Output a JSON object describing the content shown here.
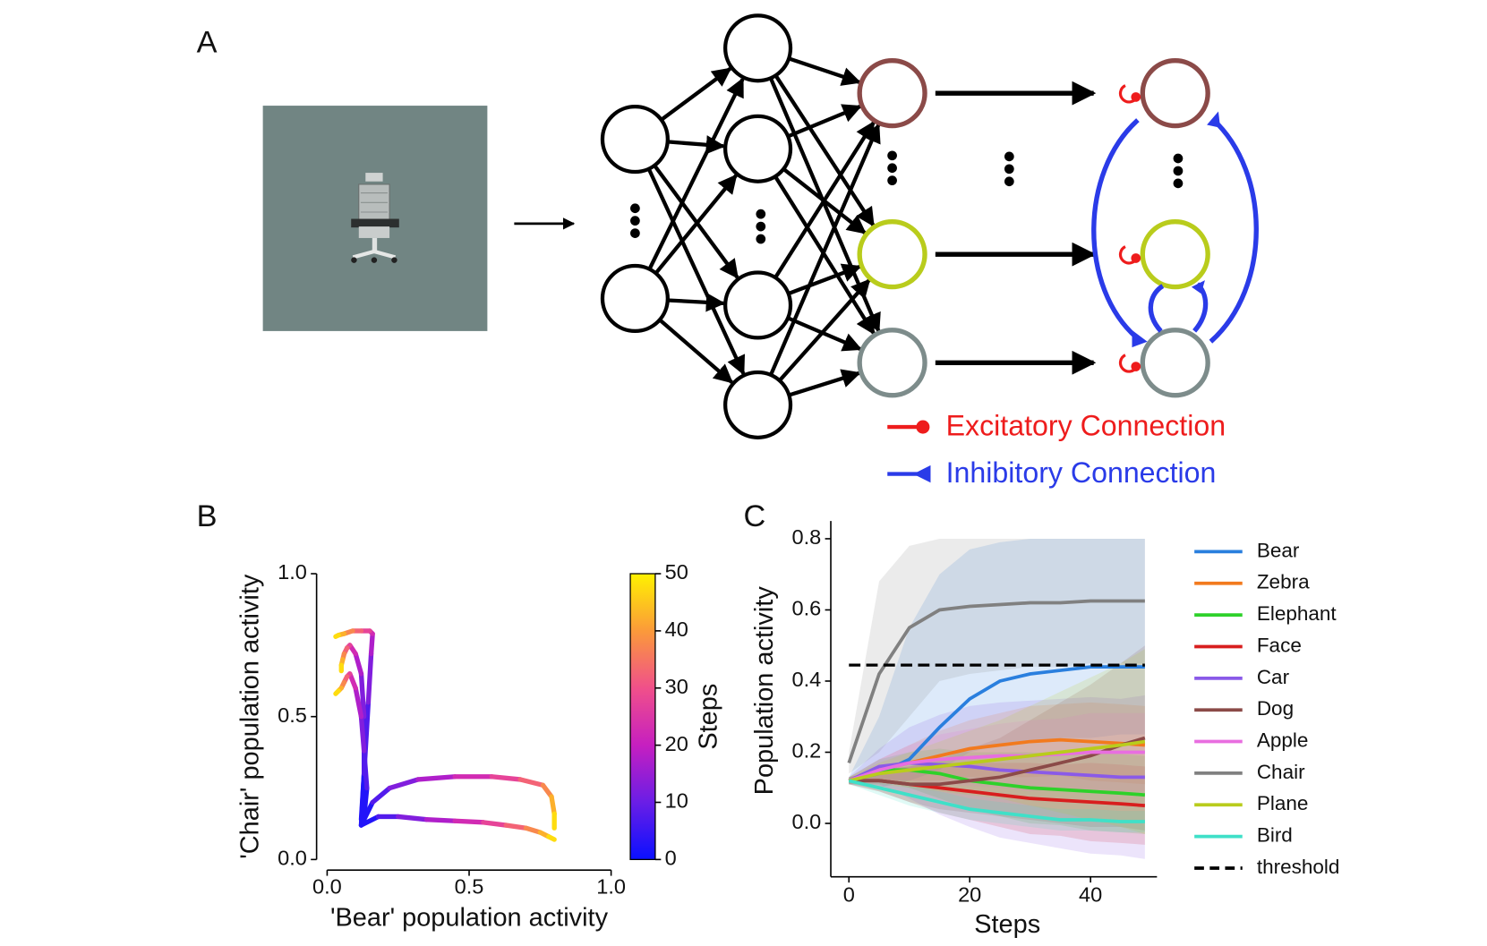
{
  "panel_labels": [
    "A",
    "B",
    "C"
  ],
  "diagram": {
    "legend": [
      "Excitatory Connection",
      "Inhibitory Connection"
    ],
    "excitatory_color": "#ee1c1c",
    "inhibitory_color": "#2a3be8",
    "output_colors": [
      "#8b4a48",
      "#b9cc1c",
      "#7d8c8b"
    ]
  },
  "chart_data": [
    {
      "type": "trajectory",
      "xlabel": "'Bear' population activity",
      "ylabel": "'Chair' population activity",
      "xlim": [
        0,
        1
      ],
      "ylim": [
        0,
        1
      ],
      "xticks": [
        {
          "value": 0,
          "label": "0.0"
        },
        0.5,
        {
          "value": 1,
          "label": "1.0"
        }
      ],
      "yticks": [
        {
          "value": 0,
          "label": "0.0"
        },
        0.5,
        {
          "value": 1,
          "label": "1.0"
        }
      ],
      "steps": [
        0,
        5,
        10,
        15,
        20,
        25,
        30,
        35,
        40,
        45,
        50
      ],
      "colorbar": {
        "label": "Steps",
        "lim": [
          0,
          50
        ],
        "ticks": [
          0,
          10,
          20,
          30,
          40,
          50
        ],
        "colors": [
          "#0a10ff",
          "#6a1ee6",
          "#c61fc0",
          "#f0508a",
          "#fb9a3a",
          "#fff200"
        ]
      },
      "series": [
        {
          "x": [
            0.12,
            0.13,
            0.145,
            0.155,
            0.16,
            0.15,
            0.12,
            0.09,
            0.06,
            0.04,
            0.03
          ],
          "y": [
            0.12,
            0.3,
            0.55,
            0.72,
            0.79,
            0.8,
            0.8,
            0.8,
            0.79,
            0.785,
            0.78
          ]
        },
        {
          "x": [
            0.12,
            0.13,
            0.13,
            0.12,
            0.1,
            0.08,
            0.07,
            0.06,
            0.055,
            0.05,
            0.05
          ],
          "y": [
            0.14,
            0.3,
            0.5,
            0.65,
            0.72,
            0.75,
            0.74,
            0.72,
            0.7,
            0.68,
            0.66
          ]
        },
        {
          "x": [
            0.13,
            0.14,
            0.13,
            0.12,
            0.1,
            0.08,
            0.07,
            0.06,
            0.05,
            0.04,
            0.03
          ],
          "y": [
            0.15,
            0.25,
            0.38,
            0.5,
            0.6,
            0.65,
            0.64,
            0.62,
            0.6,
            0.59,
            0.58
          ]
        },
        {
          "x": [
            0.12,
            0.16,
            0.22,
            0.32,
            0.45,
            0.58,
            0.68,
            0.76,
            0.79,
            0.8,
            0.8
          ],
          "y": [
            0.12,
            0.2,
            0.25,
            0.28,
            0.29,
            0.29,
            0.28,
            0.26,
            0.22,
            0.16,
            0.11
          ]
        },
        {
          "x": [
            0.12,
            0.18,
            0.25,
            0.35,
            0.45,
            0.55,
            0.63,
            0.7,
            0.75,
            0.78,
            0.8
          ],
          "y": [
            0.12,
            0.15,
            0.15,
            0.14,
            0.135,
            0.13,
            0.12,
            0.11,
            0.095,
            0.08,
            0.07
          ]
        }
      ]
    },
    {
      "type": "line",
      "xlabel": "Steps",
      "ylabel": "Population activity",
      "xlim": [
        -3,
        51
      ],
      "ylim": [
        -0.15,
        0.85
      ],
      "xticks": [
        0,
        20,
        40
      ],
      "yticks": [
        {
          "value": 0,
          "label": "0.0"
        },
        0.2,
        0.4,
        0.6,
        0.8
      ],
      "x": [
        0,
        5,
        10,
        15,
        20,
        25,
        30,
        35,
        40,
        45,
        49
      ],
      "series": [
        {
          "name": "Bear",
          "color": "#2a7fde",
          "values": [
            0.12,
            0.14,
            0.18,
            0.27,
            0.35,
            0.4,
            0.42,
            0.43,
            0.44,
            0.44,
            0.44
          ],
          "lower": [
            0.11,
            0.1,
            0.12,
            0.15,
            0.2,
            0.22,
            0.23,
            0.24,
            0.24,
            0.25,
            0.25
          ],
          "upper": [
            0.13,
            0.3,
            0.55,
            0.7,
            0.77,
            0.79,
            0.8,
            0.8,
            0.8,
            0.8,
            0.8
          ]
        },
        {
          "name": "Zebra",
          "color": "#f27a1e",
          "values": [
            0.12,
            0.15,
            0.17,
            0.19,
            0.21,
            0.22,
            0.23,
            0.235,
            0.23,
            0.225,
            0.22
          ],
          "lower": [
            0.11,
            0.12,
            0.12,
            0.12,
            0.13,
            0.13,
            0.13,
            0.135,
            0.12,
            0.115,
            0.11
          ],
          "upper": [
            0.13,
            0.18,
            0.22,
            0.26,
            0.29,
            0.31,
            0.33,
            0.335,
            0.34,
            0.335,
            0.33
          ]
        },
        {
          "name": "Elephant",
          "color": "#2ed12a",
          "values": [
            0.12,
            0.15,
            0.15,
            0.14,
            0.12,
            0.11,
            0.1,
            0.095,
            0.09,
            0.085,
            0.08
          ],
          "lower": [
            0.11,
            0.12,
            0.1,
            0.07,
            0.04,
            0.02,
            0.0,
            -0.005,
            -0.02,
            -0.025,
            -0.03
          ],
          "upper": [
            0.13,
            0.18,
            0.2,
            0.21,
            0.2,
            0.2,
            0.2,
            0.195,
            0.2,
            0.195,
            0.19
          ]
        },
        {
          "name": "Face",
          "color": "#d81e1e",
          "values": [
            0.12,
            0.12,
            0.11,
            0.1,
            0.09,
            0.08,
            0.07,
            0.065,
            0.06,
            0.055,
            0.05
          ],
          "lower": [
            0.11,
            0.09,
            0.06,
            0.03,
            0.01,
            -0.01,
            -0.03,
            -0.035,
            -0.05,
            -0.055,
            -0.06
          ],
          "upper": [
            0.13,
            0.15,
            0.16,
            0.17,
            0.17,
            0.17,
            0.17,
            0.165,
            0.17,
            0.165,
            0.16
          ]
        },
        {
          "name": "Car",
          "color": "#8a5ae8",
          "values": [
            0.12,
            0.16,
            0.17,
            0.165,
            0.16,
            0.15,
            0.145,
            0.14,
            0.135,
            0.13,
            0.13
          ],
          "lower": [
            0.11,
            0.11,
            0.07,
            0.025,
            -0.01,
            -0.04,
            -0.055,
            -0.07,
            -0.085,
            -0.09,
            -0.1
          ],
          "upper": [
            0.13,
            0.21,
            0.27,
            0.305,
            0.33,
            0.34,
            0.345,
            0.35,
            0.355,
            0.35,
            0.36
          ]
        },
        {
          "name": "Dog",
          "color": "#8b4a48",
          "values": [
            0.12,
            0.12,
            0.11,
            0.11,
            0.12,
            0.13,
            0.15,
            0.17,
            0.19,
            0.22,
            0.24
          ],
          "lower": [
            0.11,
            0.09,
            0.06,
            0.04,
            0.03,
            0.02,
            0.01,
            0.0,
            -0.01,
            -0.01,
            -0.02
          ],
          "upper": [
            0.13,
            0.15,
            0.16,
            0.18,
            0.21,
            0.24,
            0.29,
            0.34,
            0.39,
            0.45,
            0.5
          ]
        },
        {
          "name": "Apple",
          "color": "#e86ee0",
          "values": [
            0.12,
            0.15,
            0.17,
            0.18,
            0.185,
            0.19,
            0.19,
            0.195,
            0.2,
            0.2,
            0.2
          ],
          "lower": [
            0.11,
            0.12,
            0.12,
            0.11,
            0.105,
            0.1,
            0.09,
            0.095,
            0.09,
            0.09,
            0.09
          ],
          "upper": [
            0.13,
            0.18,
            0.22,
            0.25,
            0.265,
            0.28,
            0.29,
            0.295,
            0.31,
            0.31,
            0.31
          ]
        },
        {
          "name": "Chair",
          "color": "#808080",
          "values": [
            0.17,
            0.42,
            0.55,
            0.6,
            0.61,
            0.615,
            0.62,
            0.62,
            0.625,
            0.625,
            0.625
          ],
          "lower": [
            0.14,
            0.2,
            0.3,
            0.4,
            0.42,
            0.43,
            0.44,
            0.44,
            0.45,
            0.45,
            0.45
          ],
          "upper": [
            0.2,
            0.68,
            0.78,
            0.8,
            0.8,
            0.8,
            0.8,
            0.8,
            0.8,
            0.8,
            0.8
          ]
        },
        {
          "name": "Plane",
          "color": "#b9cc1c",
          "values": [
            0.12,
            0.14,
            0.15,
            0.16,
            0.17,
            0.18,
            0.19,
            0.2,
            0.21,
            0.22,
            0.23
          ],
          "lower": [
            0.11,
            0.11,
            0.1,
            0.09,
            0.08,
            0.07,
            0.05,
            0.03,
            0.01,
            -0.01,
            -0.03
          ],
          "upper": [
            0.13,
            0.17,
            0.2,
            0.23,
            0.26,
            0.29,
            0.33,
            0.37,
            0.41,
            0.45,
            0.49
          ]
        },
        {
          "name": "Bird",
          "color": "#3fe0c8",
          "values": [
            0.12,
            0.1,
            0.08,
            0.06,
            0.04,
            0.03,
            0.02,
            0.01,
            0.01,
            0.005,
            0.005
          ],
          "lower": [
            0.11,
            0.08,
            0.05,
            0.03,
            0.01,
            0.0,
            -0.01,
            -0.02,
            -0.02,
            -0.025,
            -0.025
          ],
          "upper": [
            0.13,
            0.12,
            0.11,
            0.09,
            0.07,
            0.06,
            0.05,
            0.04,
            0.04,
            0.035,
            0.035
          ]
        }
      ],
      "threshold": {
        "name": "threshold",
        "value": 0.445,
        "color": "#000000"
      }
    }
  ]
}
